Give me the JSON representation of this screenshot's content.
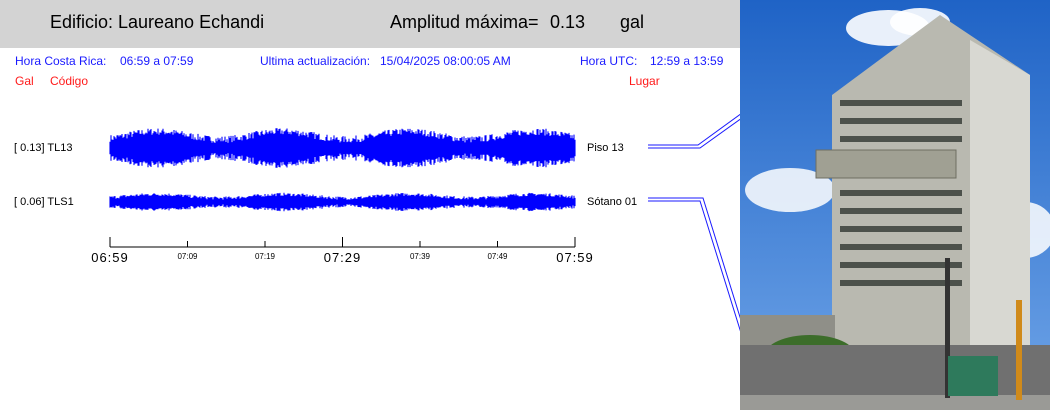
{
  "header": {
    "building_label": "Edificio:",
    "building_name": "Laureano Echandi",
    "amp_label": "Amplitud máxima=",
    "amp_value": "0.13",
    "amp_unit": "gal"
  },
  "info": {
    "local_label": "Hora Costa Rica:",
    "local_range": "06:59 a 07:59",
    "update_label": "Ultima actualización:",
    "update_value": "15/04/2025 08:00:05 AM",
    "utc_label": "Hora UTC:",
    "utc_range": "12:59 a 13:59"
  },
  "legend": {
    "gal": "Gal",
    "code": "Código",
    "place": "Lugar"
  },
  "chart_data": {
    "type": "line",
    "x_unit": "time",
    "x_range": [
      "06:59",
      "07:59"
    ],
    "ticks_major": [
      "06:59",
      "07:29",
      "07:59"
    ],
    "ticks_minor": [
      "07:09",
      "07:19",
      "07:39",
      "07:49"
    ],
    "series": [
      {
        "name": "TL13",
        "max_amplitude": "0.13",
        "label": "[ 0.13] TL13",
        "location": "Piso 13",
        "color": "#0000ff"
      },
      {
        "name": "TLS1",
        "max_amplitude": "0.06",
        "label": "[ 0.06] TLS1",
        "location": "Sótano 01",
        "color": "#0000ff"
      }
    ]
  }
}
